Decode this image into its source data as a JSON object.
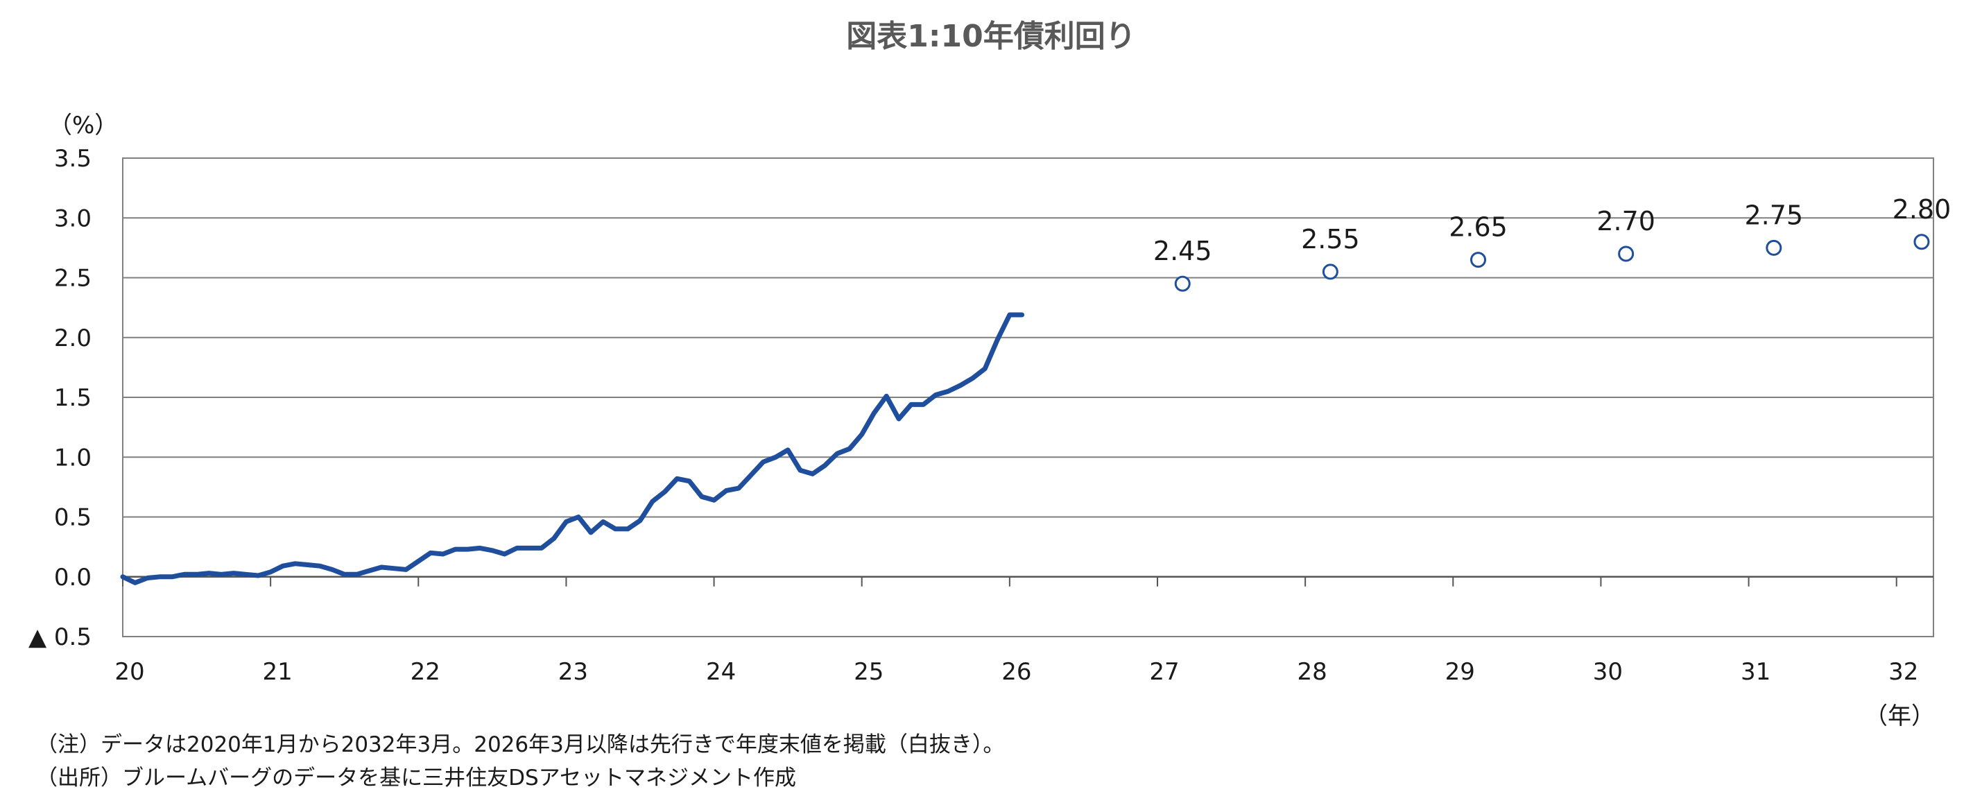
{
  "chart_data": {
    "type": "line",
    "title": "図表1:10年債利回り",
    "ylabel": "（%）",
    "xlabel": "（年）",
    "ylim": [
      -0.5,
      3.5
    ],
    "y_ticks": [
      3.5,
      3.0,
      2.5,
      2.0,
      1.5,
      1.0,
      0.5,
      0.0,
      -0.5
    ],
    "y_tick_labels": [
      "3.5",
      "3.0",
      "2.5",
      "2.0",
      "1.5",
      "1.0",
      "0.5",
      "0.0",
      "▲ 0.5"
    ],
    "x_tick_labels": [
      "20",
      "21",
      "22",
      "23",
      "24",
      "25",
      "26",
      "27",
      "28",
      "29",
      "30",
      "31",
      "32"
    ],
    "grid": true,
    "series": [
      {
        "values": [
          0.0,
          -0.05,
          -0.01,
          0.0,
          0.0,
          0.02,
          0.02,
          0.03,
          0.02,
          0.03,
          0.02,
          0.01,
          0.04,
          0.09,
          0.11,
          0.1,
          0.09,
          0.06,
          0.02,
          0.02,
          0.05,
          0.08,
          0.07,
          0.06,
          0.13,
          0.2,
          0.19,
          0.23,
          0.23,
          0.24,
          0.22,
          0.19,
          0.24,
          0.24,
          0.24,
          0.32,
          0.46,
          0.5,
          0.37,
          0.46,
          0.4,
          0.4,
          0.47,
          0.63,
          0.71,
          0.82,
          0.8,
          0.67,
          0.64,
          0.72,
          0.74,
          0.85,
          0.96,
          1.0,
          1.06,
          0.89,
          0.86,
          0.93,
          1.03,
          1.07,
          1.19,
          1.37,
          1.51,
          1.32,
          1.44,
          1.44,
          1.52,
          1.55,
          1.6,
          1.66,
          1.74,
          1.98,
          2.19,
          2.19
        ]
      },
      {
        "x": [
          27.17,
          28.17,
          29.17,
          30.17,
          31.17,
          32.17
        ],
        "values": [
          2.45,
          2.55,
          2.65,
          2.7,
          2.75,
          2.8
        ],
        "labels": [
          "2.45",
          "2.55",
          "2.65",
          "2.70",
          "2.75",
          "2.80"
        ]
      }
    ],
    "colors": {
      "line": "#1f4e9c",
      "grid": "#808080",
      "axis": "#808080"
    }
  },
  "notes": {
    "note": "（注）データは2020年1月から2032年3月。2026年3月以降は先行きで年度末値を掲載（白抜き）。",
    "source": "（出所）ブルームバーグのデータを基に三井住友DSアセットマネジメント作成"
  }
}
